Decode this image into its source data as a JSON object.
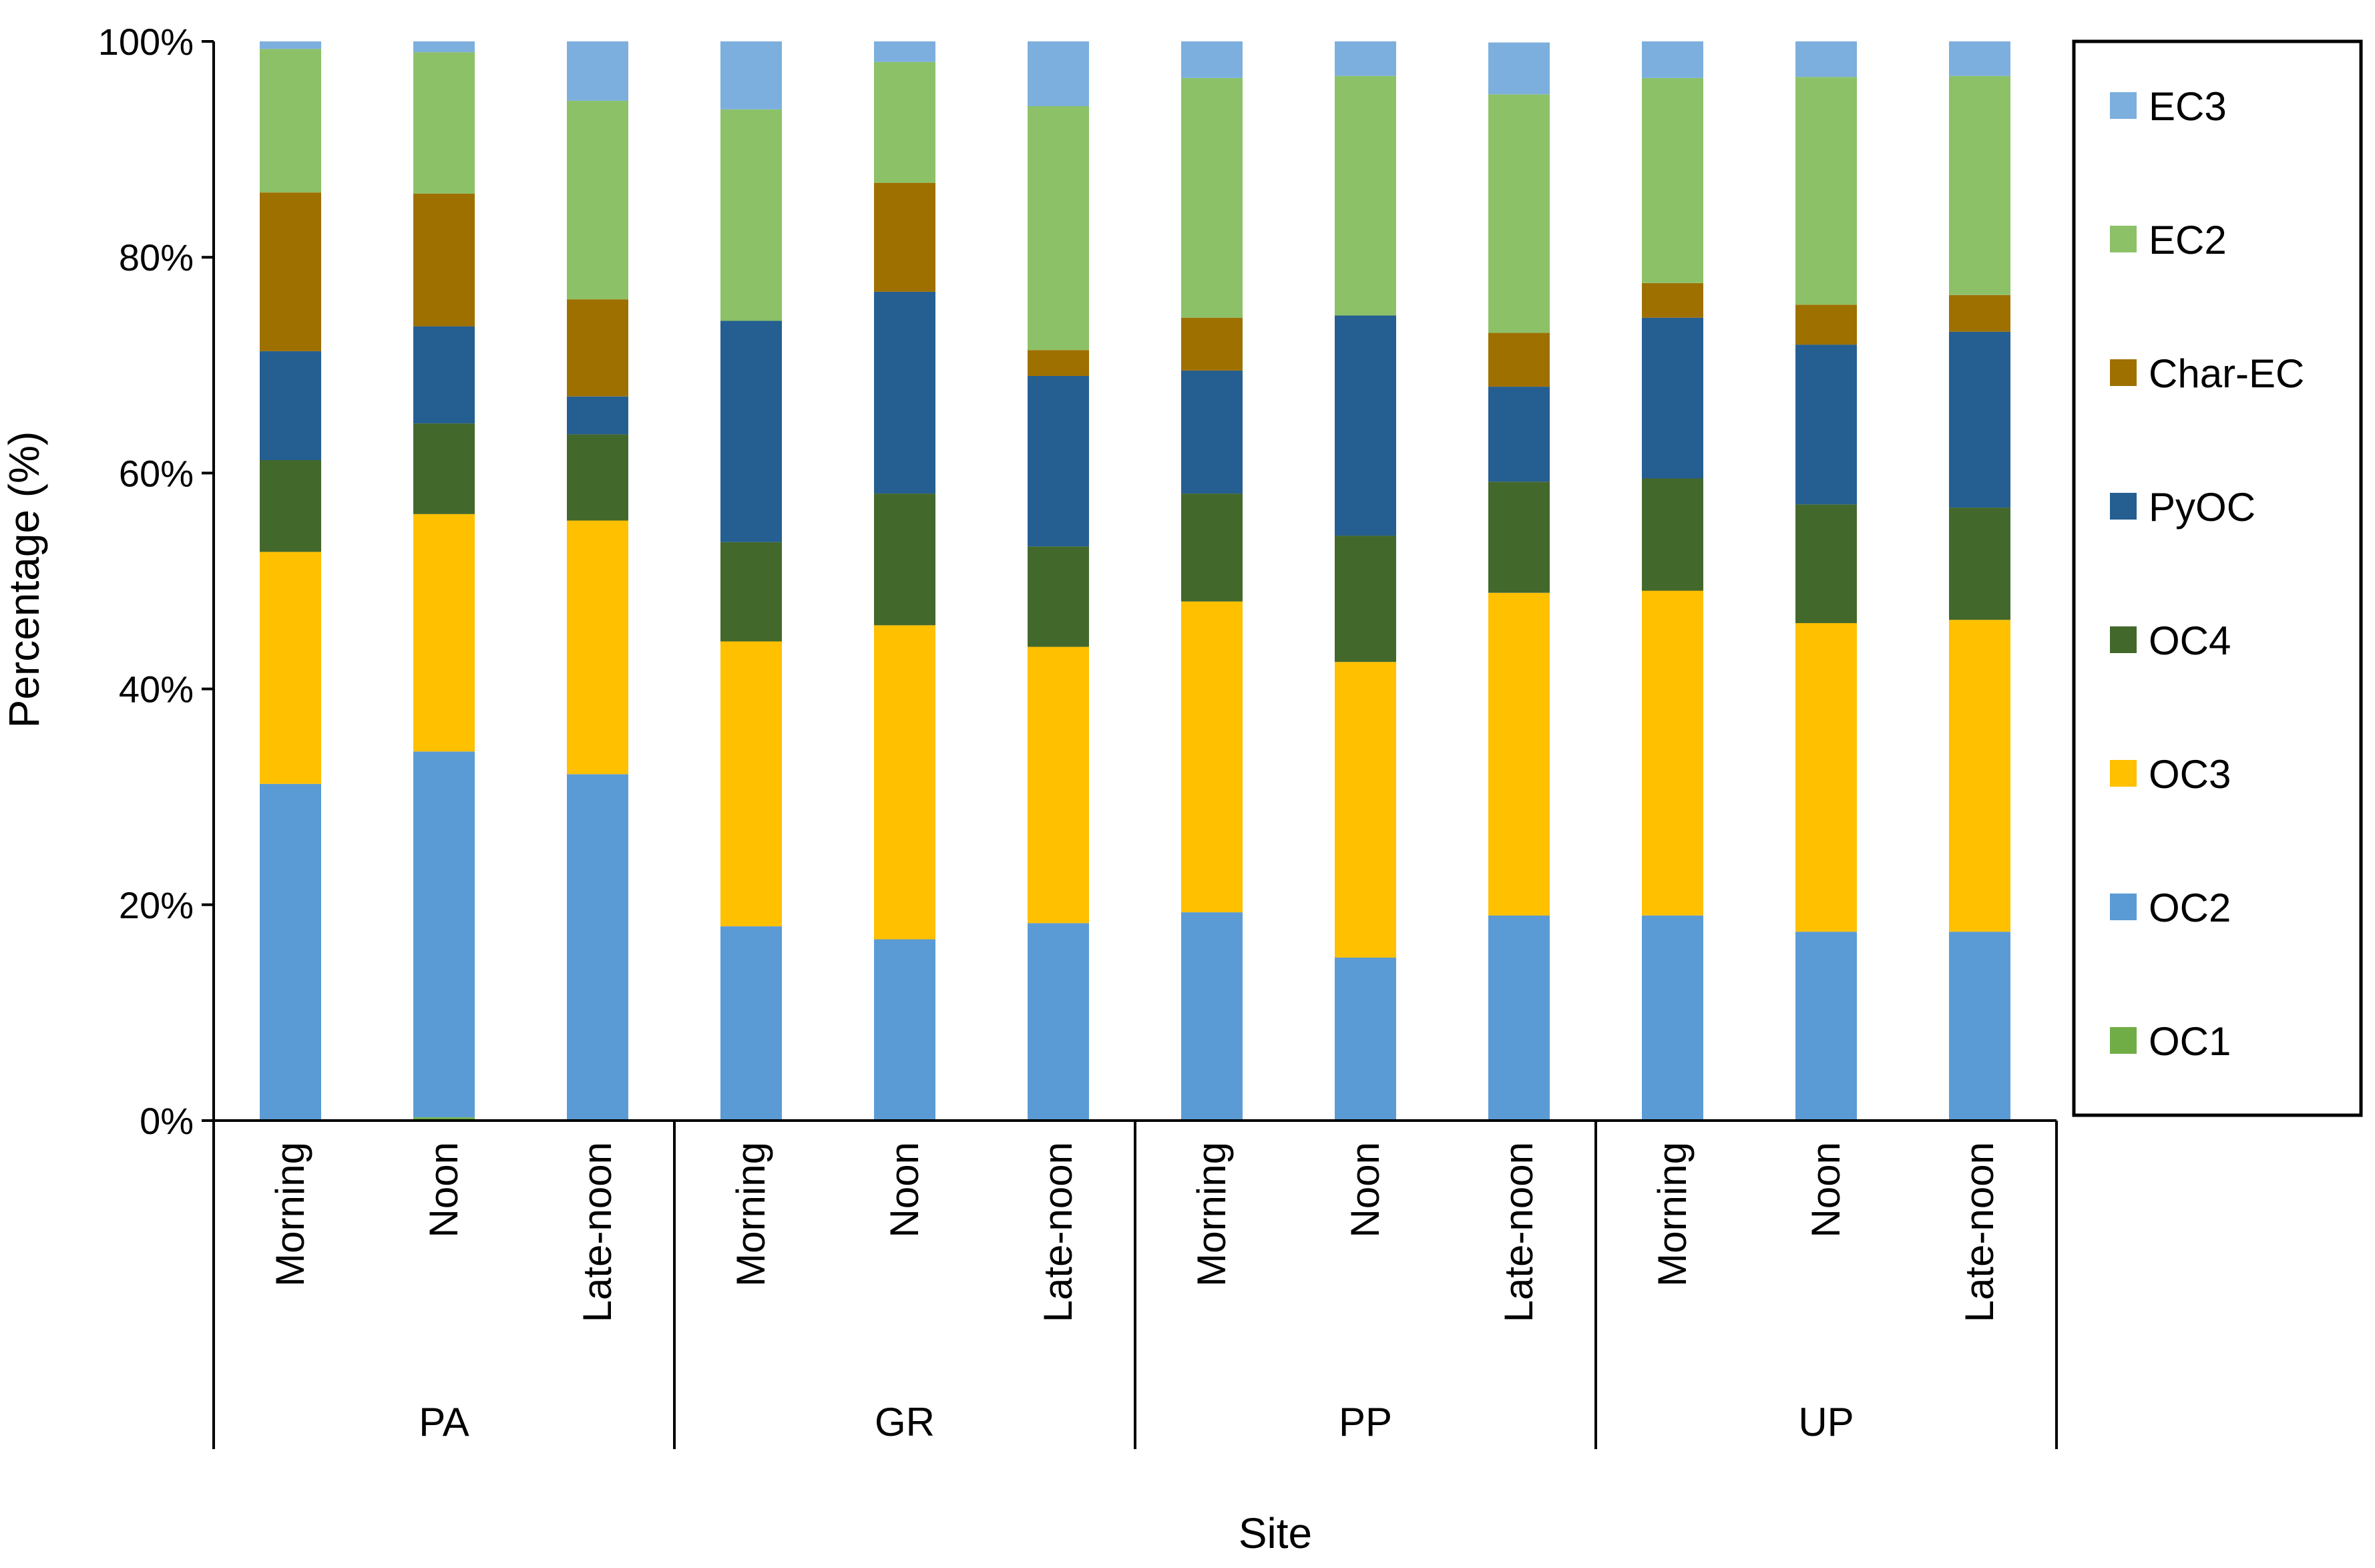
{
  "chart_data": {
    "type": "bar",
    "stacked": "percent",
    "title": "",
    "xlabel": "Site",
    "ylabel": "Percentage (%)",
    "ylim": [
      0,
      100
    ],
    "yticks": [
      "0%",
      "20%",
      "40%",
      "60%",
      "80%",
      "100%"
    ],
    "grid": false,
    "legend_position": "right",
    "groups": [
      {
        "name": "PA",
        "categories": [
          "Morning",
          "Noon",
          "Late-noon"
        ]
      },
      {
        "name": "GR",
        "categories": [
          "Morning",
          "Noon",
          "Late-noon"
        ]
      },
      {
        "name": "PP",
        "categories": [
          "Morning",
          "Noon",
          "Late-noon"
        ]
      },
      {
        "name": "UP",
        "categories": [
          "Morning",
          "Noon",
          "Late-noon"
        ]
      }
    ],
    "categories": [
      "PA Morning",
      "PA Noon",
      "PA Late-noon",
      "GR Morning",
      "GR Noon",
      "GR Late-noon",
      "PP Morning",
      "PP Noon",
      "PP Late-noon",
      "UP Morning",
      "UP Noon",
      "UP Late-noon"
    ],
    "series": [
      {
        "name": "OC1",
        "color": "#70AD47",
        "values": [
          0.0,
          0.3,
          0.0,
          0.0,
          0.0,
          0.0,
          0.0,
          0.0,
          0.0,
          0.0,
          0.0,
          0.0
        ]
      },
      {
        "name": "OC2",
        "color": "#5B9BD5",
        "values": [
          31.2,
          33.9,
          32.1,
          18.0,
          16.8,
          18.3,
          19.3,
          15.1,
          19.0,
          19.0,
          17.5,
          17.5
        ]
      },
      {
        "name": "OC3",
        "color": "#FFC000",
        "values": [
          21.5,
          22.0,
          23.5,
          26.4,
          29.1,
          25.6,
          28.8,
          27.4,
          29.9,
          30.1,
          28.6,
          28.9
        ]
      },
      {
        "name": "OC4",
        "color": "#43682B",
        "values": [
          8.5,
          8.4,
          8.0,
          9.2,
          12.2,
          9.3,
          10.0,
          11.7,
          10.3,
          10.4,
          11.0,
          10.4
        ]
      },
      {
        "name": "PyOC",
        "color": "#255E91",
        "values": [
          10.1,
          9.0,
          3.5,
          20.5,
          18.7,
          15.8,
          11.4,
          20.4,
          8.8,
          14.9,
          14.8,
          16.3
        ]
      },
      {
        "name": "Char-EC",
        "color": "#9E7000",
        "values": [
          14.7,
          12.3,
          9.0,
          0.0,
          10.1,
          2.4,
          4.9,
          0.0,
          5.0,
          3.2,
          3.7,
          3.4
        ]
      },
      {
        "name": "EC2",
        "color": "#8CC168",
        "values": [
          13.3,
          13.1,
          18.4,
          19.6,
          11.2,
          22.6,
          22.2,
          22.2,
          22.1,
          19.0,
          21.1,
          20.3
        ]
      },
      {
        "name": "EC3",
        "color": "#7CAFDD",
        "values": [
          0.7,
          1.0,
          5.5,
          6.3,
          1.9,
          6.0,
          3.4,
          3.2,
          4.8,
          3.4,
          3.3,
          3.2
        ]
      }
    ]
  }
}
